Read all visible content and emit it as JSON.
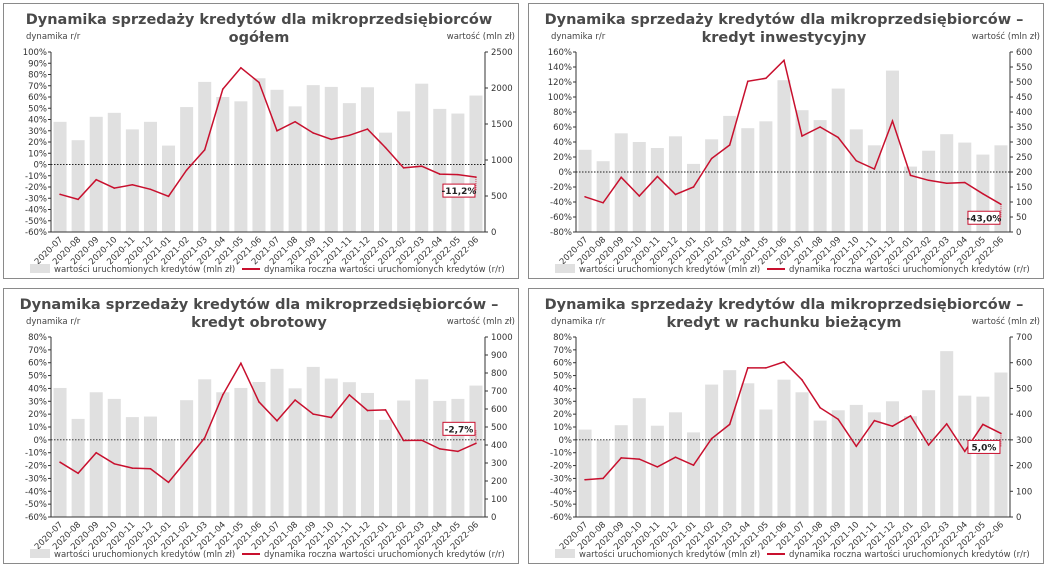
{
  "chart_data": [
    {
      "type": "bar+line",
      "title": [
        "Dynamika sprzedaży kredytów dla mikroprzedsiębiorców",
        "ogółem"
      ],
      "ylabel_left": "dynamika r/r",
      "ylabel_right": "wartość (mln zł)",
      "ylim_left": [
        -60,
        100
      ],
      "ystep_left": 10,
      "ylim_right": [
        0,
        2500
      ],
      "ystep_right": 500,
      "categories": [
        "2020-07",
        "2020-08",
        "2020-09",
        "2020-10",
        "2020-11",
        "2020-12",
        "2021-01",
        "2021-02",
        "2021-03",
        "2021-04",
        "2021-05",
        "2021-06",
        "2021-07",
        "2021-08",
        "2021-09",
        "2021-10",
        "2021-11",
        "2021-12",
        "2022-01",
        "2022-02",
        "2022-03",
        "2022-04",
        "2022-05",
        "2022-06"
      ],
      "series": [
        {
          "name": "wartości uruchomionych kredytów (mln zł)",
          "type": "bar",
          "axis": "right",
          "color": "#e0e0e0",
          "values": [
            1530,
            1275,
            1600,
            1655,
            1425,
            1530,
            1200,
            1735,
            2085,
            1875,
            1815,
            2135,
            1975,
            1745,
            2040,
            2015,
            1790,
            2010,
            1380,
            1675,
            2060,
            1710,
            1645,
            1895
          ]
        },
        {
          "name": "dynamika roczna wartości uruchomionych kredytów (r/r)",
          "type": "line",
          "axis": "left",
          "color": "#c8102e",
          "values": [
            -26.5,
            -31,
            -13.5,
            -21,
            -18,
            -22,
            -28.3,
            -5,
            13,
            67,
            86,
            73,
            30,
            38,
            28,
            22.4,
            26,
            31.5,
            15,
            -3,
            -1.5,
            -8.5,
            -9,
            -11.2
          ]
        }
      ],
      "annotation": "-11,2%",
      "legend": "bottom"
    },
    {
      "type": "bar+line",
      "title": [
        "Dynamika sprzedaży kredytów dla mikroprzedsiębiorców –",
        "kredyt inwestycyjny"
      ],
      "ylabel_left": "dynamika r/r",
      "ylabel_right": "wartość (mln zł)",
      "ylim_left": [
        -80,
        160
      ],
      "ystep_left": 20,
      "ylim_right": [
        0,
        600
      ],
      "ystep_right": 50,
      "categories": [
        "2020-07",
        "2020-08",
        "2020-09",
        "2020-10",
        "2020-11",
        "2020-12",
        "2021-01",
        "2021-02",
        "2021-03",
        "2021-04",
        "2021-05",
        "2021-06",
        "2021-07",
        "2021-08",
        "2021-09",
        "2021-10",
        "2021-11",
        "2021-12",
        "2022-01",
        "2022-02",
        "2022-03",
        "2022-04",
        "2022-05",
        "2022-06"
      ],
      "series": [
        {
          "name": "wartości uruchomionych kredytów (mln zł)",
          "type": "bar",
          "axis": "right",
          "color": "#e0e0e0",
          "values": [
            274,
            236,
            329,
            300,
            280,
            319,
            227,
            309,
            387,
            346,
            369,
            506,
            406,
            373,
            478,
            342,
            289,
            538,
            218,
            271,
            326,
            298,
            258,
            289
          ]
        },
        {
          "name": "dynamika roczna wartości uruchomionych kredytów (r/r)",
          "type": "line",
          "axis": "left",
          "color": "#c8102e",
          "values": [
            -33,
            -41,
            -7,
            -32,
            -6,
            -30,
            -20,
            18,
            36,
            121,
            125,
            149,
            48,
            60,
            46,
            15,
            4,
            68,
            -4.5,
            -11,
            -15,
            -14,
            -29,
            -43
          ]
        }
      ],
      "annotation": "-43,0%",
      "legend": "bottom"
    },
    {
      "type": "bar+line",
      "title": [
        "Dynamika sprzedaży kredytów dla mikroprzedsiębiorców –",
        "kredyt obrotowy"
      ],
      "ylabel_left": "dynamika r/r",
      "ylabel_right": "wartość (mln zł)",
      "ylim_left": [
        -60,
        80
      ],
      "ystep_left": 10,
      "ylim_right": [
        0,
        1000
      ],
      "ystep_right": 100,
      "categories": [
        "2020-07",
        "2020-08",
        "2020-09",
        "2020-10",
        "2020-11",
        "2020-12",
        "2021-01",
        "2021-02",
        "2021-03",
        "2021-04",
        "2021-05",
        "2021-06",
        "2021-07",
        "2021-08",
        "2021-09",
        "2021-10",
        "2021-11",
        "2021-12",
        "2022-01",
        "2022-02",
        "2022-03",
        "2022-04",
        "2022-05",
        "2022-06"
      ],
      "series": [
        {
          "name": "wartości uruchomionych kredytów (mln zł)",
          "type": "bar",
          "axis": "right",
          "color": "#e0e0e0",
          "values": [
            717,
            545,
            693,
            656,
            555,
            558,
            431,
            649,
            765,
            693,
            717,
            750,
            823,
            715,
            834,
            769,
            749,
            689,
            540,
            647,
            765,
            645,
            656,
            730
          ]
        },
        {
          "name": "dynamika roczna wartości uruchomionych kredytów (r/r)",
          "type": "line",
          "axis": "left",
          "color": "#c8102e",
          "values": [
            -17.4,
            -26,
            -10,
            -18.6,
            -22,
            -22.5,
            -33,
            -16,
            1.5,
            35,
            59.6,
            29.5,
            14.8,
            31,
            20,
            17.4,
            35,
            22.8,
            23.3,
            -0.5,
            -0.3,
            -7,
            -9,
            -2.7
          ]
        }
      ],
      "annotation": "-2,7%",
      "legend": "bottom"
    },
    {
      "type": "bar+line",
      "title": [
        "Dynamika sprzedaży kredytów dla mikroprzedsiębiorców –",
        "kredyt w rachunku bieżącym"
      ],
      "ylabel_left": "dynamika r/r",
      "ylabel_right": "wartość (mln zł)",
      "ylim_left": [
        -60,
        80
      ],
      "ystep_left": 10,
      "ylim_right": [
        0,
        700
      ],
      "ystep_right": 100,
      "categories": [
        "2020-07",
        "2020-08",
        "2020-09",
        "2020-10",
        "2020-11",
        "2020-12",
        "2021-01",
        "2021-02",
        "2021-03",
        "2021-04",
        "2021-05",
        "2021-06",
        "2021-07",
        "2021-08",
        "2021-09",
        "2021-10",
        "2021-11",
        "2021-12",
        "2022-01",
        "2022-02",
        "2022-03",
        "2022-04",
        "2022-05",
        "2022-06"
      ],
      "series": [
        {
          "name": "wartości uruchomionych kredytów (mln zł)",
          "type": "bar",
          "axis": "right",
          "color": "#e0e0e0",
          "values": [
            340,
            300,
            357,
            462,
            355,
            407,
            329,
            515,
            571,
            520,
            418,
            534,
            485,
            375,
            415,
            436,
            407,
            450,
            392,
            493,
            645,
            472,
            468,
            562
          ]
        },
        {
          "name": "dynamika roczna wartości uruchomionych kredytów (r/r)",
          "type": "line",
          "axis": "left",
          "color": "#c8102e",
          "values": [
            -31,
            -30,
            -14,
            -15,
            -21,
            -13.5,
            -19.7,
            1,
            12,
            56,
            56,
            60.6,
            46.6,
            25,
            16,
            -5,
            15,
            10.6,
            18.6,
            -4,
            12.4,
            -9,
            12,
            5.0
          ]
        }
      ],
      "annotation": "5,0%",
      "legend": "bottom"
    }
  ]
}
